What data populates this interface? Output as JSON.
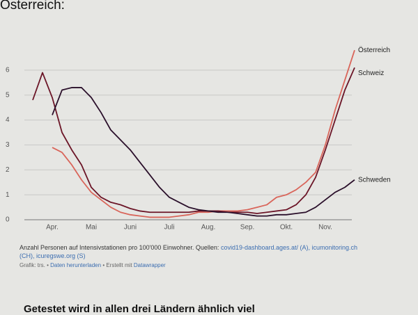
{
  "chart_data": {
    "type": "line",
    "title": "Österreich:",
    "categories": [
      null,
      null,
      "Apr.",
      null,
      null,
      null,
      "Mai",
      null,
      null,
      null,
      "Juni",
      null,
      null,
      null,
      "Juli",
      null,
      null,
      null,
      "Aug.",
      null,
      null,
      null,
      "Sep.",
      null,
      null,
      null,
      "Okt.",
      null,
      null,
      null,
      "Nov.",
      null,
      null,
      null
    ],
    "series": [
      {
        "name": "Österreich",
        "color": "#d9655a",
        "values": [
          null,
          null,
          2.9,
          2.7,
          2.2,
          1.6,
          1.1,
          0.8,
          0.5,
          0.3,
          0.2,
          0.15,
          0.1,
          0.1,
          0.1,
          0.15,
          0.2,
          0.3,
          0.3,
          0.35,
          0.35,
          0.35,
          0.4,
          0.5,
          0.6,
          0.9,
          1.0,
          1.2,
          1.5,
          1.9,
          3.0,
          4.4,
          5.6,
          6.8
        ]
      },
      {
        "name": "Schweiz",
        "color": "#6b1527",
        "values": [
          4.8,
          5.9,
          4.9,
          3.5,
          2.8,
          2.2,
          1.3,
          0.9,
          0.7,
          0.6,
          0.45,
          0.35,
          0.3,
          0.3,
          0.3,
          0.3,
          0.3,
          0.35,
          0.35,
          0.35,
          0.3,
          0.3,
          0.3,
          0.25,
          0.3,
          0.35,
          0.4,
          0.6,
          1.0,
          1.7,
          2.8,
          4.0,
          5.2,
          6.1
        ]
      },
      {
        "name": "Schweden",
        "color": "#2a0f2a",
        "values": [
          null,
          null,
          4.2,
          5.2,
          5.3,
          5.3,
          4.9,
          4.3,
          3.6,
          3.2,
          2.8,
          2.3,
          1.8,
          1.3,
          0.9,
          0.7,
          0.5,
          0.4,
          0.35,
          0.3,
          0.3,
          0.25,
          0.2,
          0.15,
          0.15,
          0.2,
          0.2,
          0.25,
          0.3,
          0.5,
          0.8,
          1.1,
          1.3,
          1.6
        ]
      }
    ],
    "ylim": [
      0,
      7
    ],
    "yticks": [
      0,
      1,
      2,
      3,
      4,
      5,
      6
    ],
    "grid": true,
    "note": "Anzahl Personen auf Intensivstationen pro 100'000 Einwohner. Quellen:",
    "sources": [
      "covid19-dashboard.ages.at/ (A), icumonitoring.ch",
      "(CH), icuregswe.org (S)"
    ],
    "credit": [
      "Grafik: trs. • ",
      "Daten herunterladen",
      " • Erstellt mit ",
      "Datawrapper"
    ]
  },
  "next_heading": "Getestet wird in allen drei Ländern ähnlich viel"
}
